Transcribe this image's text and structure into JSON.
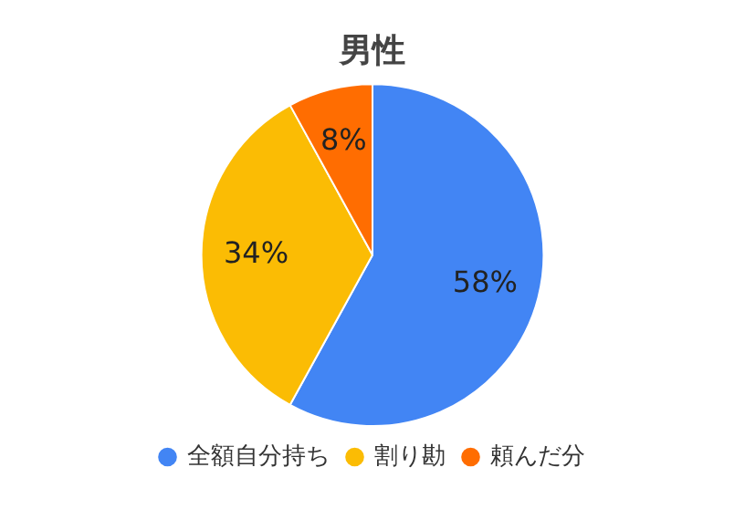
{
  "chart_data": {
    "type": "pie",
    "title": "男性",
    "categories": [
      "全額自分持ち",
      "割り勘",
      "頼んだ分"
    ],
    "values": [
      58,
      34,
      8
    ],
    "colors": [
      "#4285f4",
      "#fbbc04",
      "#ff6d01"
    ],
    "value_labels": [
      "58%",
      "34%",
      "8%"
    ],
    "legend": "bottom"
  }
}
